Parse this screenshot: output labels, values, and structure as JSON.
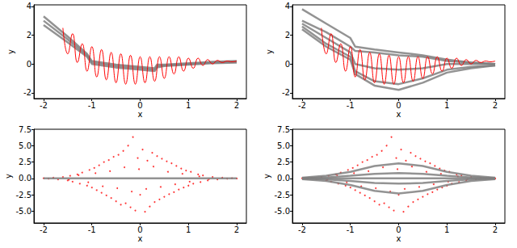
{
  "chart_data": [
    {
      "type": "line",
      "xlabel": "x",
      "ylabel": "y",
      "xlim": [
        -2.2,
        2.2
      ],
      "xticks": [
        -2,
        -1,
        0,
        1,
        2
      ],
      "ylim": [
        -2.4,
        4.1
      ],
      "yticks": [
        -2,
        0,
        2,
        4
      ],
      "series": [
        {
          "type": "line",
          "color": "#808080",
          "x": [
            -2,
            -1.5,
            -1.1,
            -1,
            -0.5,
            0,
            0.3,
            0.35,
            0.5,
            1,
            1.5,
            2
          ],
          "values": [
            3.3,
            1.9,
            0.7,
            0.2,
            -0.05,
            -0.2,
            -0.3,
            -0.05,
            -0.05,
            0.05,
            0.15,
            0.2
          ]
        },
        {
          "type": "line",
          "color": "#808080",
          "x": [
            -2,
            -1.5,
            -1.1,
            -1,
            -0.5,
            0,
            0.3,
            0.35,
            0.5,
            1,
            1.5,
            2
          ],
          "values": [
            3.0,
            1.7,
            0.6,
            0.1,
            -0.15,
            -0.3,
            -0.4,
            -0.15,
            -0.1,
            0.0,
            0.1,
            0.15
          ]
        },
        {
          "type": "line",
          "color": "#808080",
          "x": [
            -2,
            -1.5,
            -1.1,
            -1,
            -0.5,
            0,
            0.3,
            0.35,
            0.5,
            1,
            1.5,
            2
          ],
          "values": [
            2.7,
            1.5,
            0.5,
            0.0,
            -0.25,
            -0.4,
            -0.5,
            -0.25,
            -0.15,
            -0.05,
            0.05,
            0.1
          ]
        },
        {
          "type": "line",
          "color": "#ff0000",
          "x": [
            -1.6,
            -1.5,
            -1.4,
            -1.3,
            -1.2,
            -1.1,
            -1.0,
            -0.9,
            -0.8,
            -0.7,
            -0.6,
            -0.5,
            -0.4,
            -0.3,
            -0.2,
            -0.1,
            0,
            0.1,
            0.2,
            0.3,
            0.4,
            0.5,
            0.6,
            0.7,
            0.8,
            0.9,
            1.0,
            1.1,
            1.2,
            1.3,
            1.4,
            1.5,
            1.6,
            1.7,
            1.8,
            1.9,
            2.0
          ],
          "values": [
            2.5,
            0.7,
            2.1,
            0.1,
            1.4,
            -0.5,
            1.2,
            -0.9,
            1.0,
            -1.1,
            0.8,
            -1.3,
            0.7,
            -1.4,
            0.6,
            -1.4,
            0.5,
            -1.3,
            0.5,
            -1.2,
            0.5,
            -1.0,
            0.5,
            -0.7,
            0.5,
            -0.5,
            0.4,
            -0.3,
            0.4,
            -0.1,
            0.3,
            0.0,
            0.25,
            0.1,
            0.2,
            0.15,
            0.2
          ]
        }
      ]
    },
    {
      "type": "line",
      "xlabel": "x",
      "ylabel": "y",
      "xlim": [
        -2.2,
        2.2
      ],
      "xticks": [
        -2,
        -1,
        0,
        1,
        2
      ],
      "ylim": [
        -2.4,
        4.1
      ],
      "yticks": [
        -2,
        0,
        2,
        4
      ],
      "series": [
        {
          "type": "line",
          "color": "#808080",
          "x": [
            -2,
            -1.5,
            -1,
            -0.9,
            -0.5,
            0,
            0.5,
            1,
            1.5,
            2
          ],
          "values": [
            3.8,
            2.8,
            1.8,
            1.2,
            1.0,
            0.8,
            0.6,
            0.3,
            0.1,
            0.0
          ]
        },
        {
          "type": "line",
          "color": "#808080",
          "x": [
            -2,
            -1.5,
            -1,
            -0.9,
            -0.5,
            0,
            0.5,
            1,
            1.5,
            2
          ],
          "values": [
            3.0,
            2.2,
            1.2,
            0.9,
            0.8,
            0.6,
            0.5,
            0.2,
            0.1,
            0.0
          ]
        },
        {
          "type": "line",
          "color": "#808080",
          "x": [
            -2,
            -1.5,
            -1,
            -0.9,
            -0.5,
            0,
            0.5,
            1,
            1.5,
            2
          ],
          "values": [
            2.8,
            1.8,
            0.8,
            0.0,
            -0.3,
            -0.4,
            -0.3,
            0.0,
            0.0,
            0.0
          ]
        },
        {
          "type": "line",
          "color": "#808080",
          "x": [
            -2,
            -1.5,
            -1,
            -0.9,
            -0.5,
            0,
            0.5,
            1,
            1.5,
            2
          ],
          "values": [
            2.6,
            1.4,
            0.5,
            -0.5,
            -1.2,
            -1.4,
            -1.0,
            -0.4,
            -0.2,
            -0.1
          ]
        },
        {
          "type": "line",
          "color": "#808080",
          "x": [
            -2,
            -1.5,
            -1,
            -0.9,
            -0.5,
            0,
            0.5,
            1,
            1.5,
            2
          ],
          "values": [
            2.4,
            1.2,
            0.3,
            -0.7,
            -1.5,
            -1.8,
            -1.3,
            -0.6,
            -0.3,
            -0.1
          ]
        },
        {
          "type": "line",
          "color": "#ff0000",
          "x": [
            -1.6,
            -1.5,
            -1.4,
            -1.3,
            -1.2,
            -1.1,
            -1.0,
            -0.9,
            -0.8,
            -0.7,
            -0.6,
            -0.5,
            -0.4,
            -0.3,
            -0.2,
            -0.1,
            0,
            0.1,
            0.2,
            0.3,
            0.4,
            0.5,
            0.6,
            0.7,
            0.8,
            0.9,
            1.0,
            1.1,
            1.2,
            1.3,
            1.4,
            1.5,
            1.6,
            1.7,
            1.8,
            1.9,
            2.0
          ],
          "values": [
            2.5,
            0.7,
            2.1,
            0.1,
            1.4,
            -0.5,
            1.2,
            -0.9,
            1.0,
            -1.1,
            0.8,
            -1.3,
            0.7,
            -1.4,
            0.6,
            -1.4,
            0.5,
            -1.3,
            0.5,
            -1.2,
            0.5,
            -1.0,
            0.5,
            -0.7,
            0.5,
            -0.5,
            0.4,
            -0.3,
            0.4,
            -0.1,
            0.3,
            0.0,
            0.25,
            0.1,
            0.2,
            0.15,
            0.2
          ]
        }
      ]
    },
    {
      "type": "line",
      "xlabel": "x",
      "ylabel": "y",
      "xlim": [
        -2.2,
        2.2
      ],
      "xticks": [
        -2,
        -1,
        0,
        1,
        2
      ],
      "ylim": [
        -6.8,
        7.5
      ],
      "yticks": [
        {
          "value": -5,
          "label": "-5.0"
        },
        -2.5,
        {
          "value": 0,
          "label": "0.0"
        },
        2.5,
        {
          "value": 5,
          "label": "5.0"
        },
        7.5
      ],
      "series": [
        {
          "type": "scatter",
          "color": "#ff0000",
          "x": [
            -2.0,
            -1.9,
            -1.8,
            -1.7,
            -1.6,
            -1.5,
            -1.45,
            -1.4,
            -1.3,
            -1.25,
            -1.2,
            -1.1,
            -1.05,
            -1.0,
            -0.95,
            -0.9,
            -0.85,
            -0.8,
            -0.75,
            -0.7,
            -0.65,
            -0.6,
            -0.55,
            -0.5,
            -0.45,
            -0.4,
            -0.35,
            -0.3,
            -0.25,
            -0.2,
            -0.15,
            -0.1,
            -0.05,
            0,
            0.05,
            0.1,
            0.15,
            0.2,
            0.25,
            0.3,
            0.35,
            0.4,
            0.45,
            0.5,
            0.55,
            0.6,
            0.65,
            0.7,
            0.75,
            0.8,
            0.85,
            0.9,
            0.95,
            1.0,
            1.05,
            1.1,
            1.2,
            1.25,
            1.3,
            1.4,
            1.5,
            1.6,
            1.7,
            1.8,
            1.9,
            2.0,
            -1.475,
            -1.275,
            -1.075,
            -0.925,
            -0.775,
            -0.625,
            -0.475,
            -0.325,
            -0.175,
            -0.025,
            0.125,
            0.275,
            0.425,
            0.575,
            0.725,
            0.875,
            1.025,
            1.225,
            1.425
          ],
          "values": [
            0.02,
            -0.05,
            0.1,
            -0.15,
            0.2,
            -0.3,
            0.4,
            -0.5,
            0.6,
            -0.8,
            0.9,
            -1.1,
            1.3,
            -1.4,
            1.6,
            -1.8,
            2.0,
            -2.2,
            2.5,
            -2.6,
            2.8,
            -3.0,
            3.3,
            -3.5,
            3.6,
            -4.0,
            4.2,
            -3.8,
            5.0,
            -4.4,
            6.3,
            -4.9,
            3.1,
            -2.5,
            4.4,
            -5.1,
            2.7,
            -4.3,
            3.9,
            -3.6,
            3.4,
            -3.2,
            3.0,
            -2.8,
            2.6,
            -2.4,
            2.3,
            -2.1,
            1.9,
            -1.7,
            1.5,
            -1.4,
            1.2,
            -1.1,
            1.0,
            -0.8,
            0.6,
            -0.55,
            0.45,
            -0.3,
            0.2,
            -0.15,
            0.1,
            -0.05,
            0.03,
            -0.02,
            -0.2,
            0.5,
            -0.6,
            0.8,
            -1.2,
            1.1,
            -1.5,
            1.7,
            -2.0,
            1.4,
            -1.6,
            1.8,
            -1.3,
            1.0,
            -0.9,
            0.7,
            -0.5,
            0.3,
            -0.1
          ]
        },
        {
          "type": "line",
          "color": "#808080",
          "x": [
            -2,
            2
          ],
          "values": [
            0,
            0
          ]
        }
      ]
    },
    {
      "type": "line",
      "xlabel": "x",
      "ylabel": "y",
      "xlim": [
        -2.2,
        2.2
      ],
      "xticks": [
        -2,
        -1,
        0,
        1,
        2
      ],
      "ylim": [
        -6.8,
        7.5
      ],
      "yticks": [
        {
          "value": -5,
          "label": "-5.0"
        },
        -2.5,
        {
          "value": 0,
          "label": "0.0"
        },
        2.5,
        {
          "value": 5,
          "label": "5.0"
        },
        7.5
      ],
      "series": [
        {
          "type": "scatter",
          "color": "#ff0000",
          "x": [
            -2.0,
            -1.9,
            -1.8,
            -1.7,
            -1.6,
            -1.5,
            -1.45,
            -1.4,
            -1.3,
            -1.25,
            -1.2,
            -1.1,
            -1.05,
            -1.0,
            -0.95,
            -0.9,
            -0.85,
            -0.8,
            -0.75,
            -0.7,
            -0.65,
            -0.6,
            -0.55,
            -0.5,
            -0.45,
            -0.4,
            -0.35,
            -0.3,
            -0.25,
            -0.2,
            -0.15,
            -0.1,
            -0.05,
            0,
            0.05,
            0.1,
            0.15,
            0.2,
            0.25,
            0.3,
            0.35,
            0.4,
            0.45,
            0.5,
            0.55,
            0.6,
            0.65,
            0.7,
            0.75,
            0.8,
            0.85,
            0.9,
            0.95,
            1.0,
            1.05,
            1.1,
            1.2,
            1.25,
            1.3,
            1.4,
            1.5,
            1.6,
            1.7,
            1.8,
            1.9,
            2.0,
            -1.475,
            -1.275,
            -1.075,
            -0.925,
            -0.775,
            -0.625,
            -0.475,
            -0.325,
            -0.175,
            -0.025,
            0.125,
            0.275,
            0.425,
            0.575,
            0.725,
            0.875,
            1.025,
            1.225,
            1.425
          ],
          "values": [
            0.02,
            -0.05,
            0.1,
            -0.15,
            0.2,
            -0.3,
            0.4,
            -0.5,
            0.6,
            -0.8,
            0.9,
            -1.1,
            1.3,
            -1.4,
            1.6,
            -1.8,
            2.0,
            -2.2,
            2.5,
            -2.6,
            2.8,
            -3.0,
            3.3,
            -3.5,
            3.6,
            -4.0,
            4.2,
            -3.8,
            5.0,
            -4.4,
            6.3,
            -4.9,
            3.1,
            -2.5,
            4.4,
            -5.1,
            2.7,
            -4.3,
            3.9,
            -3.6,
            3.4,
            -3.2,
            3.0,
            -2.8,
            2.6,
            -2.4,
            2.3,
            -2.1,
            1.9,
            -1.7,
            1.5,
            -1.4,
            1.2,
            -1.1,
            1.0,
            -0.8,
            0.6,
            -0.55,
            0.45,
            -0.3,
            0.2,
            -0.15,
            0.1,
            -0.05,
            0.03,
            -0.02,
            -0.2,
            0.5,
            -0.6,
            0.8,
            -1.2,
            1.1,
            -1.5,
            1.7,
            -2.0,
            1.4,
            -1.6,
            1.8,
            -1.3,
            1.0,
            -0.9,
            0.7,
            -0.5,
            0.3,
            -0.1
          ]
        },
        {
          "type": "line",
          "color": "#808080",
          "x": [
            -2,
            -1.5,
            -1,
            -0.5,
            0,
            0.5,
            1,
            1.5,
            2
          ],
          "values": [
            0.1,
            0.4,
            1.0,
            1.9,
            2.3,
            1.9,
            1.0,
            0.4,
            0.1
          ]
        },
        {
          "type": "line",
          "color": "#808080",
          "x": [
            -2,
            -1.5,
            -1,
            -0.5,
            0,
            0.5,
            1,
            1.5,
            2
          ],
          "values": [
            0.05,
            0.15,
            0.4,
            0.7,
            0.8,
            0.7,
            0.4,
            0.15,
            0.05
          ]
        },
        {
          "type": "line",
          "color": "#808080",
          "x": [
            -2,
            -1.5,
            -1,
            -0.5,
            0,
            0.5,
            1,
            1.5,
            2
          ],
          "values": [
            0,
            0,
            0,
            0,
            0,
            0,
            0,
            0,
            0
          ]
        },
        {
          "type": "line",
          "color": "#808080",
          "x": [
            -2,
            -1.5,
            -1,
            -0.5,
            0,
            0.5,
            1,
            1.5,
            2
          ],
          "values": [
            -0.05,
            -0.15,
            -0.4,
            -0.7,
            -0.8,
            -0.7,
            -0.4,
            -0.15,
            -0.05
          ]
        },
        {
          "type": "line",
          "color": "#808080",
          "x": [
            -2,
            -1.5,
            -1,
            -0.5,
            0,
            0.5,
            1,
            1.5,
            2
          ],
          "values": [
            -0.1,
            -0.4,
            -1.0,
            -1.9,
            -2.3,
            -1.9,
            -1.0,
            -0.4,
            -0.1
          ]
        }
      ]
    }
  ]
}
